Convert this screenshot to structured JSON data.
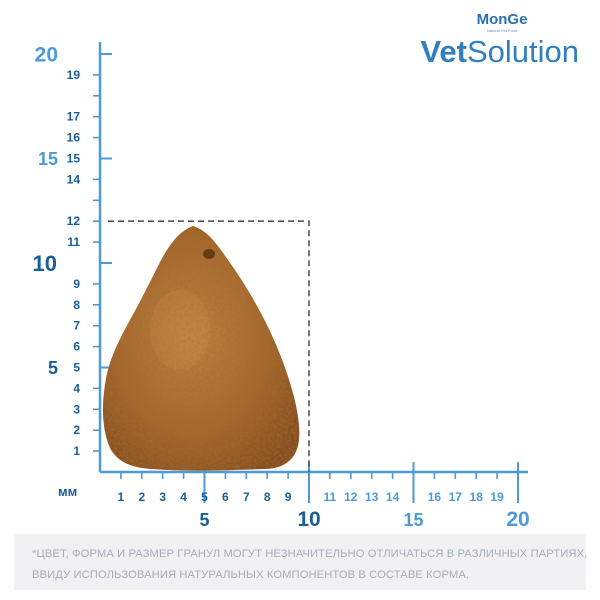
{
  "brand": {
    "monge": "MonGe",
    "monge_tagline": "Natural Pet Food",
    "product_prefix": "Vet",
    "product_suffix": "Solution"
  },
  "ruler": {
    "unit_label": "мм",
    "y_minor_ticks": [
      "1",
      "2",
      "3",
      "4",
      "5",
      "6",
      "7",
      "8",
      "9",
      "11",
      "12",
      "14",
      "15",
      "16",
      "17",
      "19"
    ],
    "y_major_ticks": [
      "5",
      "10",
      "15",
      "20"
    ],
    "x_minor_ticks": [
      "1",
      "2",
      "3",
      "4",
      "5",
      "6",
      "7",
      "8",
      "9",
      "11",
      "12",
      "13",
      "14",
      "16",
      "17",
      "18",
      "19"
    ],
    "x_major_ticks": [
      "5",
      "10",
      "15",
      "20"
    ]
  },
  "kibble": {
    "width_mm": 10,
    "height_mm": 12,
    "colors": {
      "base": "#a8672a",
      "light": "#c98a45",
      "dark": "#7a4415"
    }
  },
  "colors": {
    "accent": "#2f7fc1",
    "accent_light": "#4e9ad6",
    "dashed_box": "#555555"
  },
  "disclaimer": {
    "line1": "*ЦВЕТ, ФОРМА И РАЗМЕР ГРАНУЛ МОГУТ НЕЗНАЧИТЕЛЬНО ОТЛИЧАТЬСЯ В РАЗЛИЧНЫХ ПАРТИЯХ,",
    "line2": "ВВИДУ ИСПОЛЬЗОВАНИЯ НАТУРАЛЬНЫХ КОМПОНЕНТОВ В СОСТАВЕ КОРМА."
  }
}
